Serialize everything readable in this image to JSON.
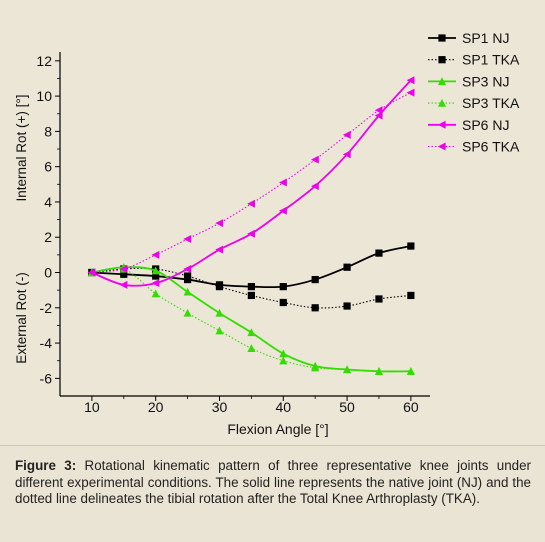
{
  "chart_data": {
    "type": "line",
    "xlabel": "Flexion Angle   [°]",
    "ylabel_upper": "Internal Rot (+)   [°]",
    "ylabel_lower": "External Rot (-)",
    "xlim": [
      5,
      63
    ],
    "ylim": [
      -7,
      12.5
    ],
    "xticks": [
      10,
      20,
      30,
      40,
      50,
      60
    ],
    "yticks": [
      12,
      10,
      8,
      6,
      4,
      2,
      0,
      -2,
      -4,
      -6
    ],
    "legend_position": "top-right",
    "series": [
      {
        "name": "SP1 NJ",
        "color": "#000000",
        "style": "solid",
        "marker": "square",
        "x": [
          10,
          15,
          20,
          25,
          30,
          35,
          40,
          45,
          50,
          55,
          60
        ],
        "y": [
          0.0,
          -0.1,
          -0.2,
          -0.4,
          -0.7,
          -0.8,
          -0.8,
          -0.4,
          0.3,
          1.1,
          1.5
        ]
      },
      {
        "name": "SP1 TKA",
        "color": "#000000",
        "style": "dotted",
        "marker": "square",
        "x": [
          10,
          15,
          20,
          25,
          30,
          35,
          40,
          45,
          50,
          55,
          60
        ],
        "y": [
          0.0,
          0.2,
          0.2,
          -0.2,
          -0.8,
          -1.3,
          -1.7,
          -2.0,
          -1.9,
          -1.5,
          -1.3
        ]
      },
      {
        "name": "SP3 NJ",
        "color": "#33dd00",
        "style": "solid",
        "marker": "triangle-up",
        "x": [
          10,
          15,
          20,
          25,
          30,
          35,
          40,
          45,
          50,
          55,
          60
        ],
        "y": [
          0.0,
          0.3,
          0.1,
          -1.1,
          -2.3,
          -3.4,
          -4.6,
          -5.3,
          -5.5,
          -5.6,
          -5.6
        ]
      },
      {
        "name": "SP3 TKA",
        "color": "#33dd00",
        "style": "dotted",
        "marker": "triangle-up",
        "x": [
          10,
          15,
          20,
          25,
          30,
          35,
          40,
          45,
          50,
          55,
          60
        ],
        "y": [
          0.0,
          0.2,
          -1.2,
          -2.3,
          -3.3,
          -4.3,
          -5.0,
          -5.4,
          -5.5,
          -5.6,
          -5.6
        ]
      },
      {
        "name": "SP6 NJ",
        "color": "#ee00ee",
        "style": "solid",
        "marker": "triangle-left",
        "x": [
          10,
          15,
          20,
          25,
          30,
          35,
          40,
          45,
          50,
          55,
          60
        ],
        "y": [
          0.0,
          -0.7,
          -0.6,
          0.2,
          1.3,
          2.2,
          3.5,
          4.9,
          6.7,
          8.9,
          10.9
        ]
      },
      {
        "name": "SP6 TKA",
        "color": "#ee00ee",
        "style": "dotted",
        "marker": "triangle-left",
        "x": [
          10,
          15,
          20,
          25,
          30,
          35,
          40,
          45,
          50,
          55,
          60
        ],
        "y": [
          0.0,
          0.2,
          1.0,
          1.9,
          2.8,
          3.9,
          5.1,
          6.4,
          7.8,
          9.2,
          10.2
        ]
      }
    ]
  },
  "caption": {
    "label": "Figure 3:",
    "text": " Rotational kinematic pattern of three representative knee joints under different experimental conditions. The solid line represents the native joint (NJ) and the dotted line delineates the tibial rotation after the Total Knee Arthroplasty (TKA)."
  }
}
